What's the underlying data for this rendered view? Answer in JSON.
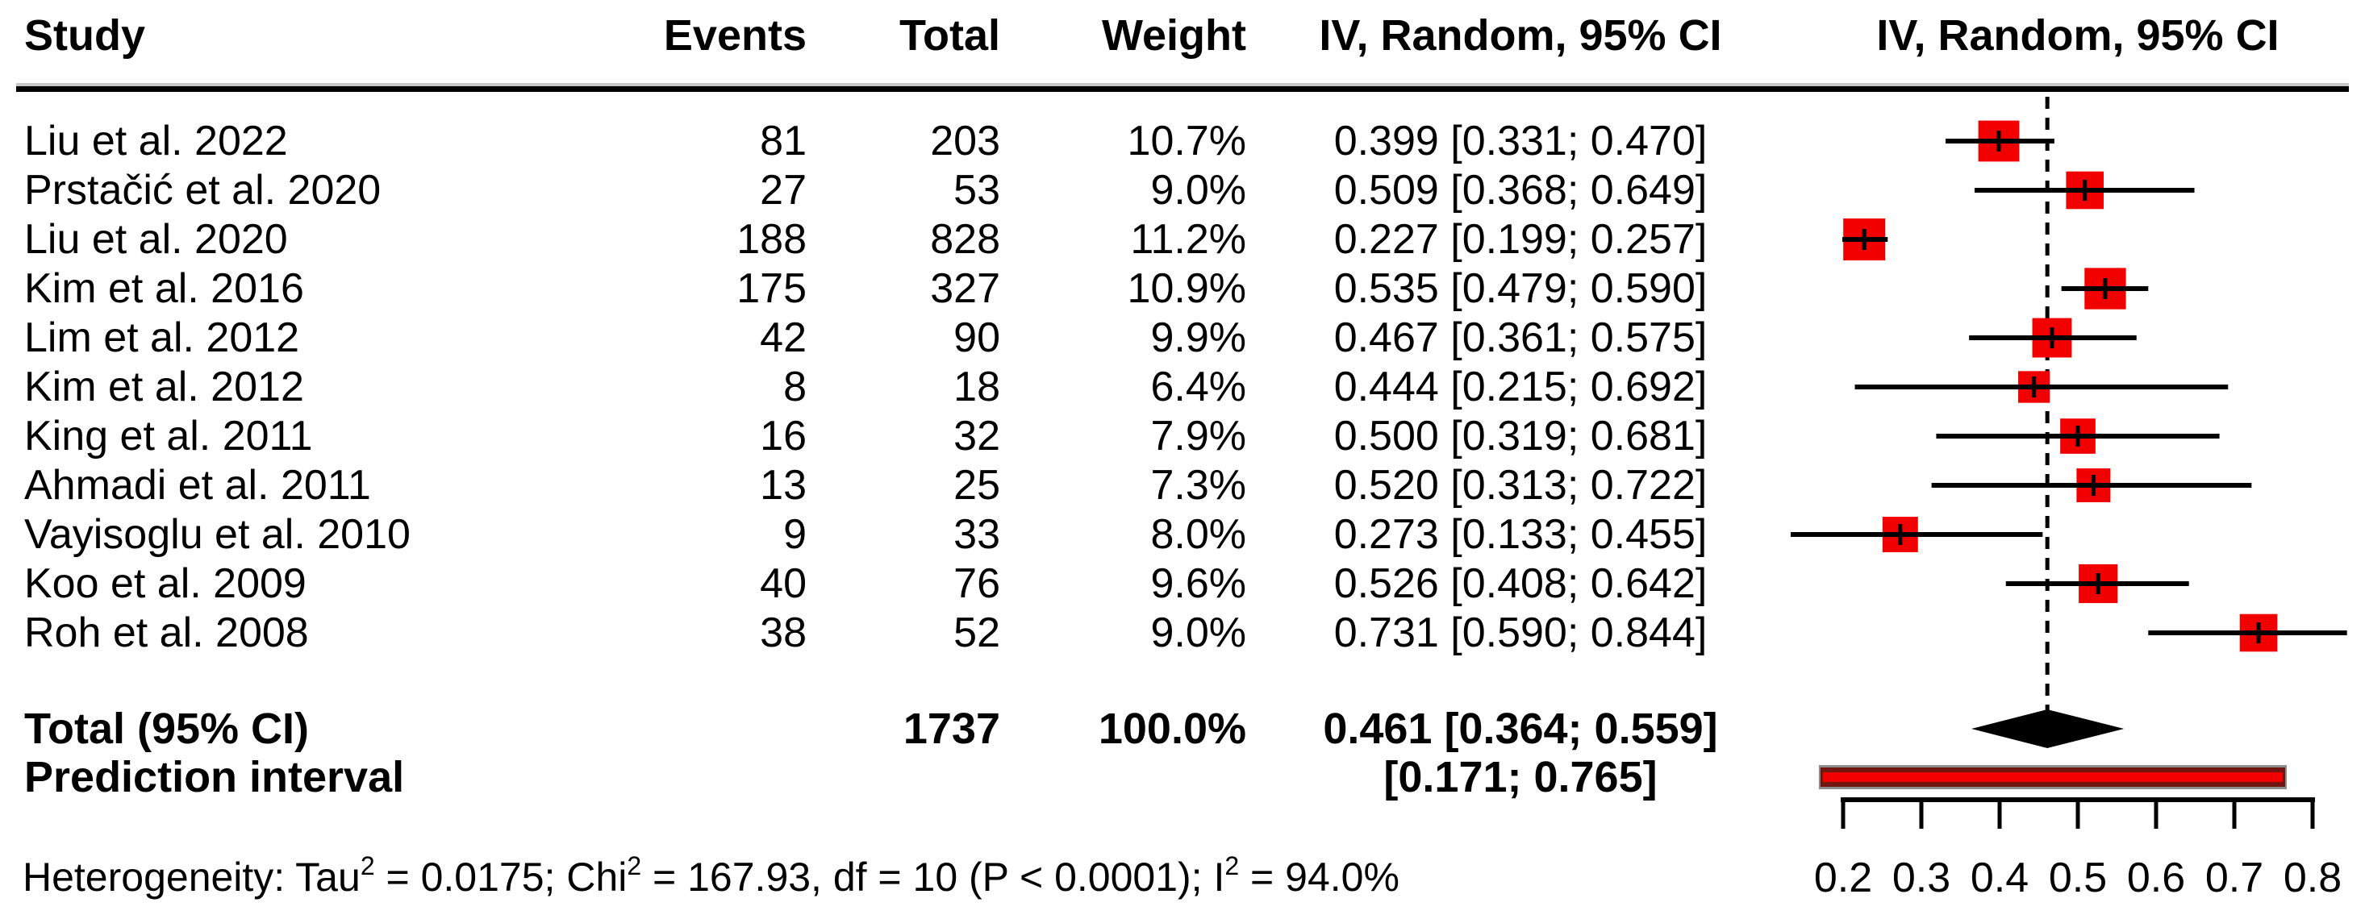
{
  "header": {
    "study": "Study",
    "events": "Events",
    "total": "Total",
    "weight": "Weight",
    "ci_text": "IV, Random, 95% CI",
    "ci_plot": "IV, Random, 95% CI"
  },
  "rows": [
    {
      "study": "Liu et al. 2022",
      "events": "81",
      "total": "203",
      "weight": "10.7%",
      "ci": "0.399 [0.331; 0.470]"
    },
    {
      "study": "Prstačić et al. 2020",
      "events": "27",
      "total": "53",
      "weight": "9.0%",
      "ci": "0.509 [0.368; 0.649]"
    },
    {
      "study": "Liu et al. 2020",
      "events": "188",
      "total": "828",
      "weight": "11.2%",
      "ci": "0.227 [0.199; 0.257]"
    },
    {
      "study": "Kim et al. 2016",
      "events": "175",
      "total": "327",
      "weight": "10.9%",
      "ci": "0.535 [0.479; 0.590]"
    },
    {
      "study": "Lim et al. 2012",
      "events": "42",
      "total": "90",
      "weight": "9.9%",
      "ci": "0.467 [0.361; 0.575]"
    },
    {
      "study": "Kim et al. 2012",
      "events": "8",
      "total": "18",
      "weight": "6.4%",
      "ci": "0.444 [0.215; 0.692]"
    },
    {
      "study": "King et al. 2011",
      "events": "16",
      "total": "32",
      "weight": "7.9%",
      "ci": "0.500 [0.319; 0.681]"
    },
    {
      "study": "Ahmadi et al. 2011",
      "events": "13",
      "total": "25",
      "weight": "7.3%",
      "ci": "0.520 [0.313; 0.722]"
    },
    {
      "study": "Vayisoglu et al. 2010",
      "events": "9",
      "total": "33",
      "weight": "8.0%",
      "ci": "0.273 [0.133; 0.455]"
    },
    {
      "study": "Koo et al. 2009",
      "events": "40",
      "total": "76",
      "weight": "9.6%",
      "ci": "0.526 [0.408; 0.642]"
    },
    {
      "study": "Roh et al. 2008",
      "events": "38",
      "total": "52",
      "weight": "9.0%",
      "ci": "0.731 [0.590; 0.844]"
    }
  ],
  "total_row": {
    "label": "Total (95% CI)",
    "total": "1737",
    "weight": "100.0%",
    "ci": "0.461 [0.364; 0.559]"
  },
  "prediction_row": {
    "label": "Prediction interval",
    "ci": "[0.171; 0.765]"
  },
  "footer": {
    "part1": "Heterogeneity: Tau",
    "sup1": "2",
    "part2": " = 0.0175; Chi",
    "sup2": "2",
    "part3": " = 167.93, df = 10 (P < 0.0001); I",
    "sup3": "2",
    "part4": " = 94.0%"
  },
  "chart_data": {
    "type": "forest",
    "effect_measure": "IV, Random, 95% CI",
    "x_range": [
      0.2,
      0.8
    ],
    "x_ticks": [
      0.2,
      0.3,
      0.4,
      0.5,
      0.6,
      0.7,
      0.8
    ],
    "x_tick_labels": [
      "0.2",
      "0.3",
      "0.4",
      "0.5",
      "0.6",
      "0.7",
      "0.8"
    ],
    "vline": 0.461,
    "studies": [
      {
        "name": "Liu et al. 2022",
        "estimate": 0.399,
        "low": 0.331,
        "high": 0.47,
        "weight_pct": 10.7
      },
      {
        "name": "Prstačić et al. 2020",
        "estimate": 0.509,
        "low": 0.368,
        "high": 0.649,
        "weight_pct": 9.0
      },
      {
        "name": "Liu et al. 2020",
        "estimate": 0.227,
        "low": 0.199,
        "high": 0.257,
        "weight_pct": 11.2
      },
      {
        "name": "Kim et al. 2016",
        "estimate": 0.535,
        "low": 0.479,
        "high": 0.59,
        "weight_pct": 10.9
      },
      {
        "name": "Lim et al. 2012",
        "estimate": 0.467,
        "low": 0.361,
        "high": 0.575,
        "weight_pct": 9.9
      },
      {
        "name": "Kim et al. 2012",
        "estimate": 0.444,
        "low": 0.215,
        "high": 0.692,
        "weight_pct": 6.4
      },
      {
        "name": "King et al. 2011",
        "estimate": 0.5,
        "low": 0.319,
        "high": 0.681,
        "weight_pct": 7.9
      },
      {
        "name": "Ahmadi et al. 2011",
        "estimate": 0.52,
        "low": 0.313,
        "high": 0.722,
        "weight_pct": 7.3
      },
      {
        "name": "Vayisoglu et al. 2010",
        "estimate": 0.273,
        "low": 0.133,
        "high": 0.455,
        "weight_pct": 8.0
      },
      {
        "name": "Koo et al. 2009",
        "estimate": 0.526,
        "low": 0.408,
        "high": 0.642,
        "weight_pct": 9.6
      },
      {
        "name": "Roh et al. 2008",
        "estimate": 0.731,
        "low": 0.59,
        "high": 0.844,
        "weight_pct": 9.0
      }
    ],
    "overall": {
      "label": "Total (95% CI)",
      "estimate": 0.461,
      "low": 0.364,
      "high": 0.559,
      "events_total": 1737,
      "weight_pct": 100.0
    },
    "prediction": {
      "label": "Prediction interval",
      "low": 0.171,
      "high": 0.765
    },
    "heterogeneity": {
      "tau2": 0.0175,
      "chi2": 167.93,
      "df": 10,
      "p": "< 0.0001",
      "i2_pct": 94.0
    },
    "legend_position": "none",
    "grid": false,
    "colors": {
      "square": "#f20000",
      "ci_line": "#000000",
      "diamond": "#000000",
      "vline": "#000000",
      "axis": "#000000",
      "prediction_core": "#f20000",
      "prediction_border": "#701510",
      "prediction_outline": "#8f8f8f"
    }
  }
}
